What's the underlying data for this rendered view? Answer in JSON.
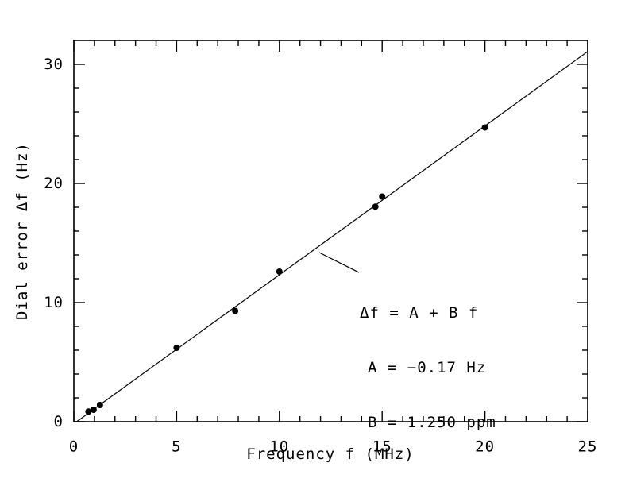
{
  "figure": {
    "background": "#ffffff",
    "ink": "#000000"
  },
  "chart_data": {
    "type": "scatter",
    "title": "",
    "xlabel": "Frequency f (MHz)",
    "ylabel": "Dial error Δf (Hz)",
    "xlim": [
      0,
      25
    ],
    "ylim": [
      0,
      32
    ],
    "x_major_ticks": [
      0,
      5,
      10,
      15,
      20,
      25
    ],
    "x_minor_step": 1,
    "y_major_ticks": [
      0,
      10,
      20,
      30
    ],
    "y_minor_step": 2,
    "grid": false,
    "legend": false,
    "marker": "filled-circle",
    "points": [
      {
        "f_mhz": 0.71,
        "dial_error_hz": 0.85
      },
      {
        "f_mhz": 0.96,
        "dial_error_hz": 1.0
      },
      {
        "f_mhz": 1.27,
        "dial_error_hz": 1.4
      },
      {
        "f_mhz": 5.0,
        "dial_error_hz": 6.2
      },
      {
        "f_mhz": 7.85,
        "dial_error_hz": 9.3
      },
      {
        "f_mhz": 10.0,
        "dial_error_hz": 12.6
      },
      {
        "f_mhz": 14.67,
        "dial_error_hz": 18.05
      },
      {
        "f_mhz": 15.0,
        "dial_error_hz": 18.9
      },
      {
        "f_mhz": 20.0,
        "dial_error_hz": 24.7
      }
    ],
    "fit": {
      "A_hz": -0.17,
      "B_ppm": 1.25
    },
    "fit_label_lines": [
      "Δf = A + B f",
      "A = −0.17 Hz",
      "B = 1.250 ppm"
    ],
    "leader_line": {
      "x1_mhz": 11.94,
      "y1_hz": 14.2,
      "x2_mhz": 13.87,
      "y2_hz": 12.53
    }
  }
}
